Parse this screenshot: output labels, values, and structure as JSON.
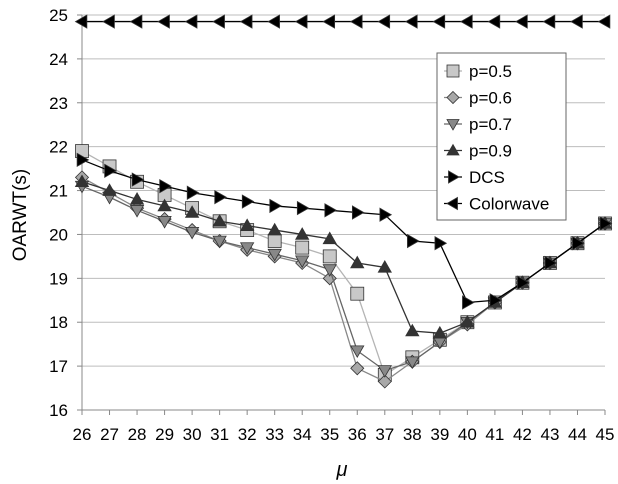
{
  "chart_data": {
    "type": "line",
    "xlabel": "μ",
    "ylabel": "OARWT(s)",
    "x": [
      26,
      27,
      28,
      29,
      30,
      31,
      32,
      33,
      34,
      35,
      36,
      37,
      38,
      39,
      40,
      41,
      42,
      43,
      44,
      45
    ],
    "ylim": [
      16,
      25
    ],
    "yticks": [
      16,
      17,
      18,
      19,
      20,
      21,
      22,
      23,
      24,
      25
    ],
    "grid": "horizontal",
    "legend_position": "top-right",
    "series": [
      {
        "name": "p=0.5",
        "marker": "square",
        "color": "#c8c8c8",
        "line_color": "#b4b4b4",
        "values": [
          21.9,
          21.55,
          21.2,
          20.9,
          20.6,
          20.3,
          20.1,
          19.85,
          19.7,
          19.5,
          18.65,
          16.8,
          17.2,
          17.6,
          18.0,
          18.45,
          18.9,
          19.35,
          19.8,
          20.25
        ]
      },
      {
        "name": "p=0.6",
        "marker": "diamond",
        "color": "#a8a8a8",
        "line_color": "#888888",
        "values": [
          21.3,
          20.95,
          20.6,
          20.35,
          20.1,
          19.85,
          19.65,
          19.5,
          19.35,
          19.0,
          16.95,
          16.65,
          17.1,
          17.55,
          17.95,
          18.45,
          18.9,
          19.35,
          19.8,
          20.25
        ]
      },
      {
        "name": "p=0.7",
        "marker": "triangle-down",
        "color": "#888888",
        "line_color": "#666666",
        "values": [
          21.1,
          20.85,
          20.55,
          20.3,
          20.05,
          19.85,
          19.7,
          19.55,
          19.4,
          19.2,
          17.35,
          16.9,
          17.1,
          17.55,
          18.0,
          18.45,
          18.9,
          19.35,
          19.8,
          20.25
        ]
      },
      {
        "name": "p=0.9",
        "marker": "triangle-up",
        "color": "#333333",
        "line_color": "#333333",
        "values": [
          21.2,
          21.0,
          20.8,
          20.65,
          20.5,
          20.3,
          20.2,
          20.1,
          20.0,
          19.9,
          19.35,
          19.25,
          17.8,
          17.75,
          18.0,
          18.45,
          18.9,
          19.35,
          19.8,
          20.25
        ]
      },
      {
        "name": "DCS",
        "marker": "triangle-right",
        "color": "#000000",
        "line_color": "#000000",
        "values": [
          21.7,
          21.45,
          21.25,
          21.1,
          20.95,
          20.85,
          20.75,
          20.65,
          20.6,
          20.55,
          20.5,
          20.45,
          19.85,
          19.8,
          18.45,
          18.5,
          18.9,
          19.35,
          19.8,
          20.25
        ]
      },
      {
        "name": "Colorwave",
        "marker": "triangle-left",
        "color": "#000000",
        "line_color": "#000000",
        "values": [
          24.85,
          24.85,
          24.85,
          24.85,
          24.85,
          24.85,
          24.85,
          24.85,
          24.85,
          24.85,
          24.85,
          24.85,
          24.85,
          24.85,
          24.85,
          24.85,
          24.85,
          24.85,
          24.85,
          24.85
        ]
      }
    ]
  }
}
